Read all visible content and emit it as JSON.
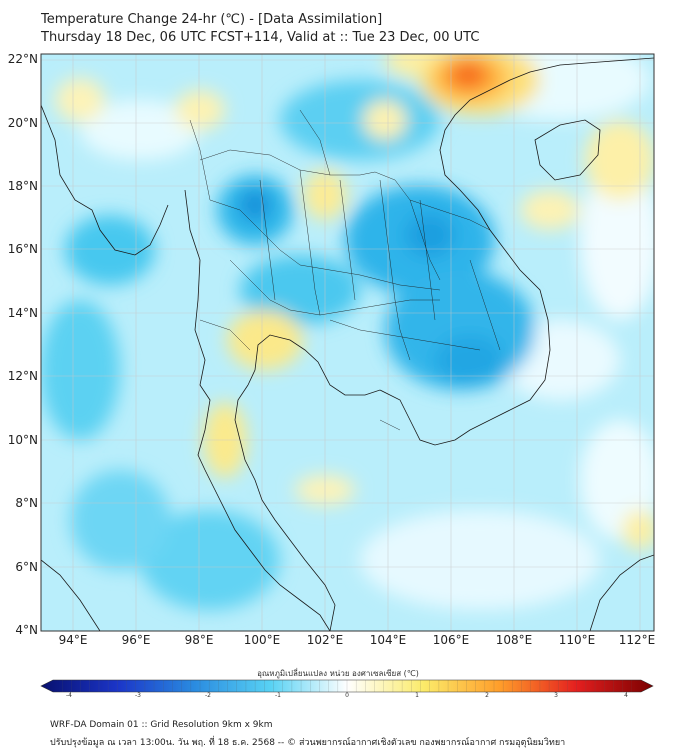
{
  "title": {
    "line1": "Temperature Change 24-hr (℃) - [Data Assimilation]",
    "line2": "Thursday 18 Dec, 06 UTC FCST+114, Valid at :: Tue 23 Dec, 00 UTC"
  },
  "map": {
    "lat_labels": [
      "22°N",
      "20°N",
      "18°N",
      "16°N",
      "14°N",
      "12°N",
      "10°N",
      "8°N",
      "6°N",
      "4°N"
    ],
    "lon_labels": [
      "94°E",
      "96°E",
      "98°E",
      "100°E",
      "102°E",
      "104°E",
      "106°E",
      "108°E",
      "110°E",
      "112°E"
    ],
    "lat_range": [
      4,
      22.3
    ],
    "lon_range": [
      93,
      112.5
    ],
    "lat_ticks": [
      22,
      20,
      18,
      16,
      14,
      12,
      10,
      8,
      6,
      4
    ],
    "lon_ticks": [
      94,
      96,
      98,
      100,
      102,
      104,
      106,
      108,
      110,
      112
    ]
  },
  "colorbar": {
    "label": "อุณหภูมิเปลี่ยนแปลง หน่วย องศาเซลเซียส (℃)",
    "ticks": [
      "-4",
      "-3",
      "-2",
      "-1",
      "0",
      "1",
      "2",
      "3",
      "4"
    ],
    "min": -4,
    "max": 4,
    "colors": [
      "#08106e",
      "#1b35c8",
      "#2a8be0",
      "#58d2f4",
      "#ffffff",
      "#fbeb6a",
      "#ff9d2a",
      "#e41f1f",
      "#7a0000"
    ]
  },
  "footer": {
    "line1": "WRF-DA Domain 01 :: Grid Resolution 9km x 9km",
    "line2": "ปรับปรุงข้อมูล ณ เวลา 13:00น. วัน พฤ. ที่ 18 ธ.ค. 2568 -- © ส่วนพยากรณ์อากาศเชิงตัวเลข กองพยากรณ์อากาศ กรมอุตุนิยมวิทยา"
  }
}
